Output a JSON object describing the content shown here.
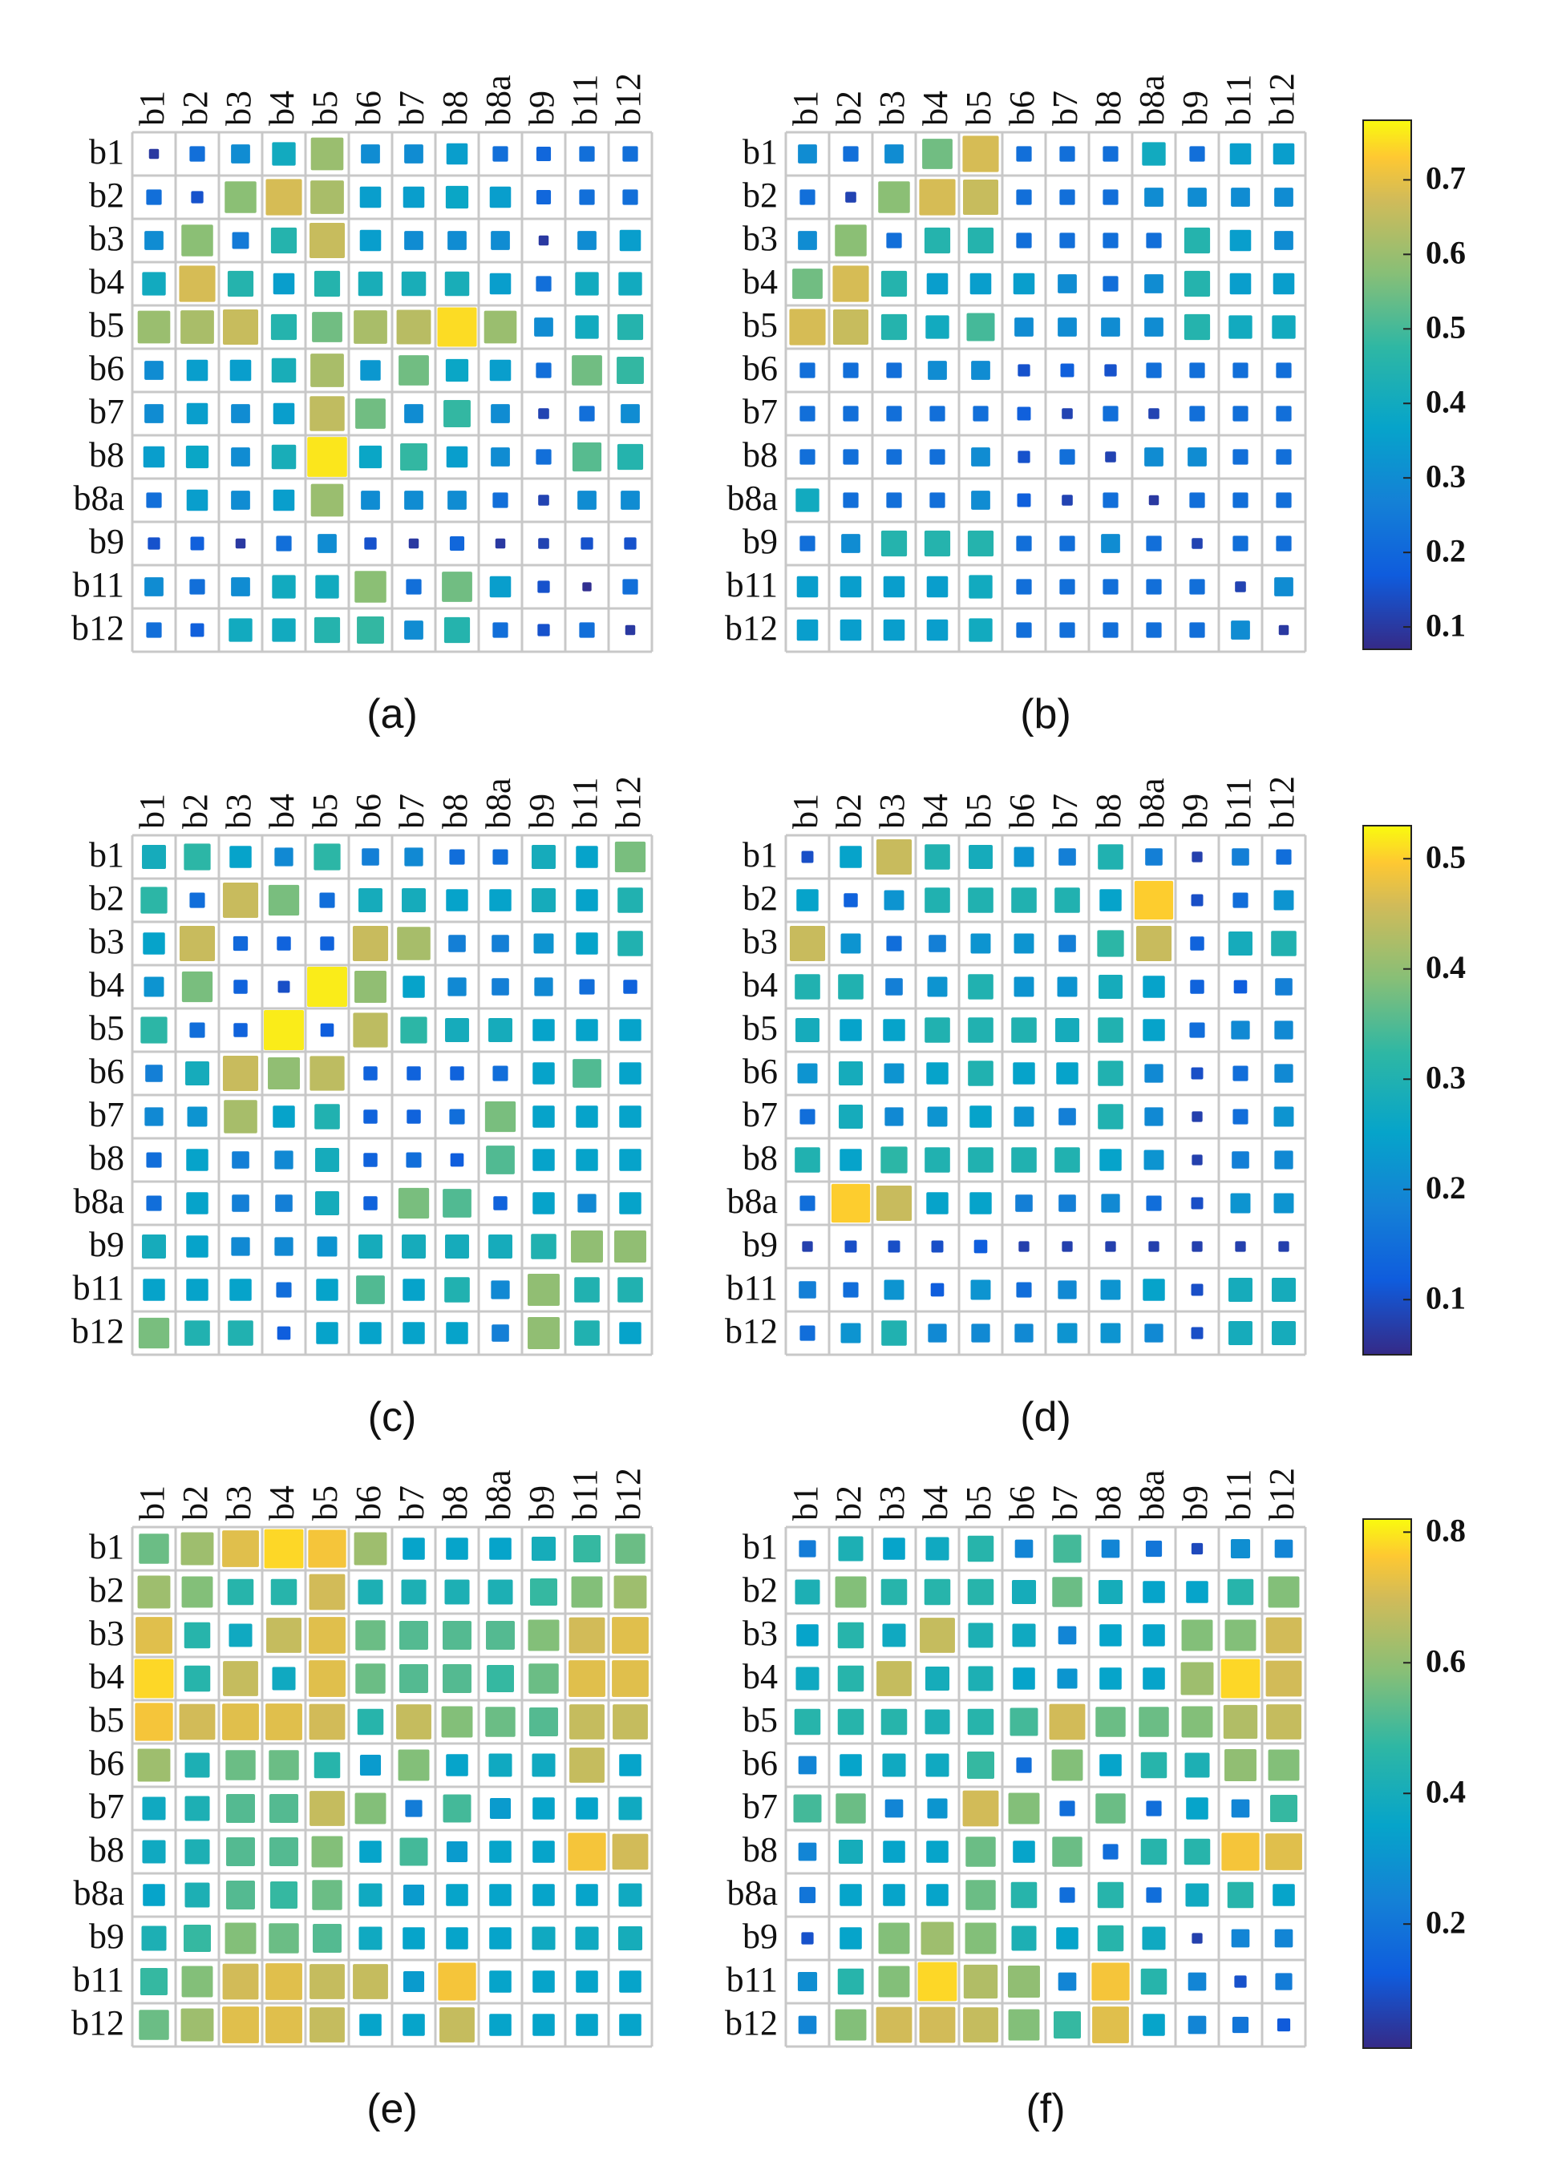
{
  "figure": {
    "bands": [
      "b1",
      "b2",
      "b3",
      "b4",
      "b5",
      "b6",
      "b7",
      "b8",
      "b8a",
      "b9",
      "b11",
      "b12"
    ]
  },
  "colorbars": [
    {
      "id": "top",
      "range": [
        0.07,
        0.78
      ],
      "ticks": [
        0.1,
        0.2,
        0.3,
        0.4,
        0.5,
        0.6,
        0.7
      ]
    },
    {
      "id": "middle",
      "range": [
        0.05,
        0.53
      ],
      "ticks": [
        0.1,
        0.2,
        0.3,
        0.4,
        0.5
      ]
    },
    {
      "id": "bottom",
      "range": [
        0.01,
        0.82
      ],
      "ticks": [
        0.2,
        0.4,
        0.6,
        0.8
      ]
    }
  ],
  "chart_data": [
    {
      "type": "heatmap",
      "label": "(a)",
      "colorbar": "top",
      "categories": [
        "b1",
        "b2",
        "b3",
        "b4",
        "b5",
        "b6",
        "b7",
        "b8",
        "b8a",
        "b9",
        "b11",
        "b12"
      ],
      "matrix": [
        [
          0.1,
          0.22,
          0.3,
          0.4,
          0.6,
          0.3,
          0.3,
          0.35,
          0.22,
          0.2,
          0.22,
          0.22
        ],
        [
          0.22,
          0.15,
          0.58,
          0.68,
          0.62,
          0.35,
          0.35,
          0.38,
          0.35,
          0.2,
          0.22,
          0.22
        ],
        [
          0.3,
          0.58,
          0.25,
          0.45,
          0.66,
          0.35,
          0.3,
          0.3,
          0.3,
          0.1,
          0.3,
          0.35
        ],
        [
          0.4,
          0.68,
          0.45,
          0.35,
          0.45,
          0.42,
          0.42,
          0.42,
          0.35,
          0.22,
          0.4,
          0.4
        ],
        [
          0.6,
          0.62,
          0.66,
          0.45,
          0.55,
          0.62,
          0.64,
          0.75,
          0.6,
          0.3,
          0.4,
          0.45
        ],
        [
          0.3,
          0.35,
          0.35,
          0.42,
          0.62,
          0.33,
          0.55,
          0.38,
          0.35,
          0.22,
          0.55,
          0.48
        ],
        [
          0.3,
          0.35,
          0.3,
          0.35,
          0.65,
          0.55,
          0.3,
          0.48,
          0.3,
          0.12,
          0.22,
          0.3
        ],
        [
          0.35,
          0.38,
          0.3,
          0.42,
          0.76,
          0.38,
          0.48,
          0.35,
          0.3,
          0.22,
          0.52,
          0.45
        ],
        [
          0.22,
          0.35,
          0.3,
          0.35,
          0.6,
          0.3,
          0.3,
          0.3,
          0.22,
          0.12,
          0.3,
          0.3
        ],
        [
          0.15,
          0.18,
          0.1,
          0.22,
          0.3,
          0.15,
          0.1,
          0.2,
          0.1,
          0.12,
          0.15,
          0.15
        ],
        [
          0.3,
          0.22,
          0.3,
          0.4,
          0.4,
          0.58,
          0.22,
          0.55,
          0.35,
          0.15,
          0.08,
          0.22
        ],
        [
          0.22,
          0.18,
          0.4,
          0.4,
          0.45,
          0.48,
          0.3,
          0.45,
          0.22,
          0.15,
          0.22,
          0.1
        ]
      ]
    },
    {
      "type": "heatmap",
      "label": "(b)",
      "colorbar": "top",
      "categories": [
        "b1",
        "b2",
        "b3",
        "b4",
        "b5",
        "b6",
        "b7",
        "b8",
        "b8a",
        "b9",
        "b11",
        "b12"
      ],
      "matrix": [
        [
          0.3,
          0.22,
          0.3,
          0.55,
          0.68,
          0.22,
          0.22,
          0.22,
          0.4,
          0.22,
          0.35,
          0.35
        ],
        [
          0.22,
          0.12,
          0.58,
          0.68,
          0.66,
          0.22,
          0.22,
          0.22,
          0.3,
          0.3,
          0.3,
          0.3
        ],
        [
          0.3,
          0.58,
          0.22,
          0.45,
          0.45,
          0.22,
          0.22,
          0.22,
          0.22,
          0.45,
          0.35,
          0.3
        ],
        [
          0.55,
          0.68,
          0.45,
          0.35,
          0.35,
          0.35,
          0.3,
          0.22,
          0.3,
          0.45,
          0.35,
          0.35
        ],
        [
          0.68,
          0.66,
          0.45,
          0.4,
          0.5,
          0.3,
          0.3,
          0.3,
          0.3,
          0.45,
          0.4,
          0.4
        ],
        [
          0.22,
          0.22,
          0.22,
          0.3,
          0.3,
          0.15,
          0.18,
          0.15,
          0.22,
          0.22,
          0.22,
          0.22
        ],
        [
          0.22,
          0.22,
          0.22,
          0.22,
          0.22,
          0.18,
          0.12,
          0.22,
          0.12,
          0.22,
          0.22,
          0.22
        ],
        [
          0.22,
          0.22,
          0.22,
          0.22,
          0.3,
          0.15,
          0.22,
          0.12,
          0.3,
          0.3,
          0.22,
          0.22
        ],
        [
          0.4,
          0.22,
          0.22,
          0.22,
          0.3,
          0.18,
          0.12,
          0.22,
          0.1,
          0.22,
          0.22,
          0.22
        ],
        [
          0.22,
          0.3,
          0.45,
          0.45,
          0.45,
          0.22,
          0.22,
          0.3,
          0.22,
          0.12,
          0.22,
          0.22
        ],
        [
          0.35,
          0.35,
          0.35,
          0.35,
          0.4,
          0.22,
          0.22,
          0.22,
          0.22,
          0.22,
          0.12,
          0.3
        ],
        [
          0.35,
          0.35,
          0.35,
          0.35,
          0.4,
          0.22,
          0.22,
          0.22,
          0.22,
          0.22,
          0.3,
          0.1
        ]
      ]
    },
    {
      "type": "heatmap",
      "label": "(c)",
      "colorbar": "middle",
      "categories": [
        "b1",
        "b2",
        "b3",
        "b4",
        "b5",
        "b6",
        "b7",
        "b8",
        "b8a",
        "b9",
        "b11",
        "b12"
      ],
      "matrix": [
        [
          0.28,
          0.32,
          0.25,
          0.2,
          0.32,
          0.18,
          0.2,
          0.15,
          0.15,
          0.28,
          0.25,
          0.38
        ],
        [
          0.32,
          0.15,
          0.45,
          0.38,
          0.15,
          0.28,
          0.28,
          0.25,
          0.25,
          0.28,
          0.25,
          0.3
        ],
        [
          0.25,
          0.45,
          0.14,
          0.13,
          0.13,
          0.45,
          0.42,
          0.18,
          0.18,
          0.22,
          0.25,
          0.3
        ],
        [
          0.22,
          0.38,
          0.13,
          0.1,
          0.52,
          0.4,
          0.25,
          0.2,
          0.18,
          0.2,
          0.15,
          0.13
        ],
        [
          0.32,
          0.15,
          0.13,
          0.52,
          0.12,
          0.44,
          0.32,
          0.28,
          0.28,
          0.25,
          0.25,
          0.25
        ],
        [
          0.18,
          0.28,
          0.45,
          0.4,
          0.44,
          0.13,
          0.13,
          0.13,
          0.15,
          0.25,
          0.35,
          0.25
        ],
        [
          0.2,
          0.22,
          0.42,
          0.25,
          0.3,
          0.13,
          0.13,
          0.15,
          0.38,
          0.25,
          0.25,
          0.25
        ],
        [
          0.15,
          0.25,
          0.18,
          0.2,
          0.28,
          0.13,
          0.15,
          0.12,
          0.35,
          0.25,
          0.25,
          0.25
        ],
        [
          0.15,
          0.25,
          0.18,
          0.18,
          0.28,
          0.13,
          0.38,
          0.35,
          0.13,
          0.25,
          0.2,
          0.25
        ],
        [
          0.28,
          0.25,
          0.2,
          0.2,
          0.22,
          0.28,
          0.28,
          0.28,
          0.28,
          0.3,
          0.4,
          0.4
        ],
        [
          0.25,
          0.25,
          0.25,
          0.15,
          0.25,
          0.35,
          0.25,
          0.3,
          0.2,
          0.4,
          0.3,
          0.3
        ],
        [
          0.38,
          0.3,
          0.3,
          0.12,
          0.25,
          0.25,
          0.25,
          0.25,
          0.18,
          0.4,
          0.3,
          0.25
        ]
      ]
    },
    {
      "type": "heatmap",
      "label": "(d)",
      "colorbar": "middle",
      "categories": [
        "b1",
        "b2",
        "b3",
        "b4",
        "b5",
        "b6",
        "b7",
        "b8",
        "b8a",
        "b9",
        "b11",
        "b12"
      ],
      "matrix": [
        [
          0.1,
          0.25,
          0.45,
          0.3,
          0.28,
          0.22,
          0.18,
          0.3,
          0.18,
          0.08,
          0.18,
          0.15
        ],
        [
          0.25,
          0.13,
          0.22,
          0.3,
          0.3,
          0.3,
          0.3,
          0.25,
          0.5,
          0.1,
          0.15,
          0.22
        ],
        [
          0.45,
          0.22,
          0.15,
          0.18,
          0.22,
          0.22,
          0.18,
          0.32,
          0.45,
          0.13,
          0.28,
          0.3
        ],
        [
          0.3,
          0.3,
          0.18,
          0.22,
          0.3,
          0.22,
          0.22,
          0.28,
          0.25,
          0.13,
          0.12,
          0.18
        ],
        [
          0.28,
          0.25,
          0.25,
          0.3,
          0.3,
          0.3,
          0.28,
          0.3,
          0.25,
          0.15,
          0.2,
          0.2
        ],
        [
          0.22,
          0.28,
          0.22,
          0.25,
          0.3,
          0.25,
          0.25,
          0.3,
          0.2,
          0.1,
          0.15,
          0.2
        ],
        [
          0.15,
          0.28,
          0.2,
          0.22,
          0.25,
          0.22,
          0.18,
          0.3,
          0.2,
          0.08,
          0.15,
          0.22
        ],
        [
          0.3,
          0.25,
          0.32,
          0.3,
          0.3,
          0.3,
          0.3,
          0.25,
          0.22,
          0.08,
          0.18,
          0.2
        ],
        [
          0.15,
          0.5,
          0.45,
          0.25,
          0.25,
          0.18,
          0.18,
          0.2,
          0.15,
          0.1,
          0.22,
          0.22
        ],
        [
          0.08,
          0.1,
          0.1,
          0.1,
          0.12,
          0.08,
          0.08,
          0.08,
          0.08,
          0.08,
          0.08,
          0.08
        ],
        [
          0.18,
          0.15,
          0.22,
          0.12,
          0.22,
          0.15,
          0.2,
          0.22,
          0.25,
          0.1,
          0.28,
          0.28
        ],
        [
          0.15,
          0.22,
          0.3,
          0.2,
          0.2,
          0.2,
          0.22,
          0.22,
          0.2,
          0.1,
          0.28,
          0.28
        ]
      ]
    },
    {
      "type": "heatmap",
      "label": "(e)",
      "colorbar": "bottom",
      "categories": [
        "b1",
        "b2",
        "b3",
        "b4",
        "b5",
        "b6",
        "b7",
        "b8",
        "b8a",
        "b9",
        "b11",
        "b12"
      ],
      "matrix": [
        [
          0.55,
          0.62,
          0.72,
          0.78,
          0.75,
          0.62,
          0.35,
          0.35,
          0.35,
          0.4,
          0.48,
          0.55
        ],
        [
          0.62,
          0.58,
          0.45,
          0.45,
          0.7,
          0.42,
          0.42,
          0.42,
          0.42,
          0.48,
          0.58,
          0.62
        ],
        [
          0.72,
          0.45,
          0.38,
          0.68,
          0.72,
          0.55,
          0.52,
          0.52,
          0.52,
          0.58,
          0.7,
          0.72
        ],
        [
          0.78,
          0.45,
          0.68,
          0.38,
          0.72,
          0.55,
          0.52,
          0.52,
          0.48,
          0.55,
          0.72,
          0.72
        ],
        [
          0.75,
          0.7,
          0.72,
          0.72,
          0.7,
          0.45,
          0.68,
          0.58,
          0.55,
          0.52,
          0.68,
          0.68
        ],
        [
          0.62,
          0.42,
          0.55,
          0.55,
          0.45,
          0.32,
          0.58,
          0.35,
          0.38,
          0.38,
          0.68,
          0.35
        ],
        [
          0.38,
          0.42,
          0.52,
          0.52,
          0.68,
          0.58,
          0.22,
          0.5,
          0.32,
          0.35,
          0.35,
          0.38
        ],
        [
          0.38,
          0.42,
          0.52,
          0.52,
          0.58,
          0.35,
          0.5,
          0.32,
          0.35,
          0.35,
          0.75,
          0.7
        ],
        [
          0.35,
          0.42,
          0.52,
          0.48,
          0.55,
          0.38,
          0.32,
          0.35,
          0.35,
          0.35,
          0.35,
          0.38
        ],
        [
          0.42,
          0.48,
          0.58,
          0.55,
          0.52,
          0.38,
          0.35,
          0.35,
          0.35,
          0.38,
          0.38,
          0.4
        ],
        [
          0.48,
          0.58,
          0.7,
          0.72,
          0.68,
          0.68,
          0.32,
          0.75,
          0.35,
          0.35,
          0.35,
          0.35
        ],
        [
          0.55,
          0.62,
          0.72,
          0.72,
          0.68,
          0.35,
          0.35,
          0.68,
          0.35,
          0.35,
          0.35,
          0.35
        ]
      ]
    },
    {
      "type": "heatmap",
      "label": "(f)",
      "colorbar": "bottom",
      "categories": [
        "b1",
        "b2",
        "b3",
        "b4",
        "b5",
        "b6",
        "b7",
        "b8",
        "b8a",
        "b9",
        "b11",
        "b12"
      ],
      "matrix": [
        [
          0.22,
          0.42,
          0.35,
          0.38,
          0.45,
          0.25,
          0.5,
          0.25,
          0.2,
          0.08,
          0.28,
          0.25
        ],
        [
          0.42,
          0.58,
          0.45,
          0.45,
          0.45,
          0.4,
          0.55,
          0.4,
          0.35,
          0.35,
          0.45,
          0.58
        ],
        [
          0.35,
          0.45,
          0.38,
          0.68,
          0.42,
          0.38,
          0.25,
          0.35,
          0.35,
          0.58,
          0.58,
          0.7
        ],
        [
          0.38,
          0.45,
          0.68,
          0.4,
          0.42,
          0.35,
          0.3,
          0.35,
          0.35,
          0.62,
          0.78,
          0.7
        ],
        [
          0.45,
          0.45,
          0.45,
          0.42,
          0.45,
          0.5,
          0.7,
          0.55,
          0.55,
          0.58,
          0.65,
          0.68
        ],
        [
          0.25,
          0.35,
          0.38,
          0.38,
          0.48,
          0.18,
          0.58,
          0.35,
          0.45,
          0.42,
          0.6,
          0.58
        ],
        [
          0.5,
          0.55,
          0.25,
          0.3,
          0.7,
          0.58,
          0.18,
          0.55,
          0.18,
          0.35,
          0.25,
          0.48
        ],
        [
          0.25,
          0.4,
          0.35,
          0.35,
          0.55,
          0.35,
          0.55,
          0.18,
          0.45,
          0.45,
          0.75,
          0.72
        ],
        [
          0.2,
          0.35,
          0.35,
          0.35,
          0.55,
          0.45,
          0.18,
          0.45,
          0.18,
          0.38,
          0.45,
          0.35
        ],
        [
          0.1,
          0.35,
          0.58,
          0.62,
          0.58,
          0.42,
          0.35,
          0.45,
          0.38,
          0.06,
          0.25,
          0.25
        ],
        [
          0.28,
          0.45,
          0.58,
          0.78,
          0.65,
          0.6,
          0.25,
          0.75,
          0.45,
          0.25,
          0.1,
          0.22
        ],
        [
          0.25,
          0.58,
          0.7,
          0.7,
          0.68,
          0.58,
          0.48,
          0.72,
          0.35,
          0.25,
          0.2,
          0.12
        ]
      ]
    }
  ]
}
